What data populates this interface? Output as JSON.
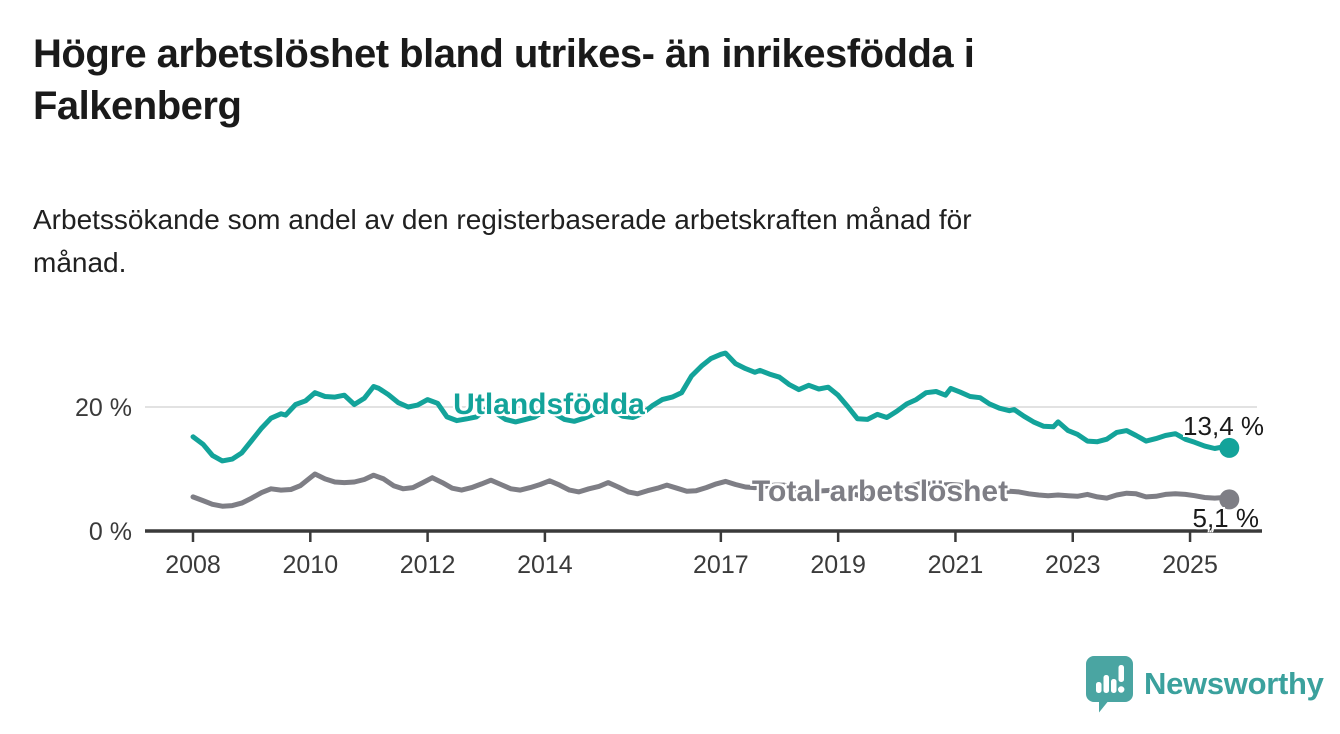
{
  "header": {
    "title_line1": "Högre arbetslöshet bland utrikes- än inrikesfödda i",
    "title_line2": "Falkenberg",
    "subtitle_line1": "Arbetssökande som andel av den registerbaserade arbetskraften månad för",
    "subtitle_line2": "månad."
  },
  "chart_data": {
    "type": "line",
    "unit": "%",
    "x_axis": {
      "ticks": [
        2008,
        2010,
        2012,
        2014,
        2017,
        2019,
        2021,
        2023,
        2025
      ],
      "range_years": [
        2007.2,
        2026.2
      ]
    },
    "y_axis": {
      "ticks": [
        {
          "value": 0,
          "label": "0 %"
        },
        {
          "value": 20,
          "label": "20 %"
        }
      ],
      "grid_values": [
        20
      ],
      "range": [
        0,
        31
      ]
    },
    "series": [
      {
        "name": "Utlandsfödda",
        "color": "#13a39a",
        "end_label": "13,4 %",
        "end_value": 13.4,
        "points": [
          [
            2008.0,
            15.2
          ],
          [
            2008.17,
            14.0
          ],
          [
            2008.33,
            12.2
          ],
          [
            2008.5,
            11.3
          ],
          [
            2008.67,
            11.6
          ],
          [
            2008.83,
            12.6
          ],
          [
            2009.0,
            14.6
          ],
          [
            2009.17,
            16.6
          ],
          [
            2009.33,
            18.2
          ],
          [
            2009.5,
            18.9
          ],
          [
            2009.58,
            18.7
          ],
          [
            2009.75,
            20.4
          ],
          [
            2009.92,
            21.0
          ],
          [
            2010.08,
            22.3
          ],
          [
            2010.25,
            21.7
          ],
          [
            2010.42,
            21.6
          ],
          [
            2010.58,
            21.9
          ],
          [
            2010.75,
            20.4
          ],
          [
            2010.92,
            21.4
          ],
          [
            2011.08,
            23.3
          ],
          [
            2011.17,
            23.0
          ],
          [
            2011.33,
            22.0
          ],
          [
            2011.5,
            20.7
          ],
          [
            2011.67,
            20.0
          ],
          [
            2011.83,
            20.3
          ],
          [
            2012.0,
            21.2
          ],
          [
            2012.17,
            20.6
          ],
          [
            2012.33,
            18.4
          ],
          [
            2012.5,
            17.8
          ],
          [
            2012.67,
            18.1
          ],
          [
            2012.83,
            18.4
          ],
          [
            2013.0,
            19.7
          ],
          [
            2013.17,
            19.0
          ],
          [
            2013.33,
            18.0
          ],
          [
            2013.5,
            17.6
          ],
          [
            2013.67,
            18.0
          ],
          [
            2013.83,
            18.4
          ],
          [
            2014.0,
            19.4
          ],
          [
            2014.17,
            18.9
          ],
          [
            2014.33,
            18.0
          ],
          [
            2014.5,
            17.7
          ],
          [
            2014.67,
            18.2
          ],
          [
            2014.83,
            18.8
          ],
          [
            2015.0,
            19.9
          ],
          [
            2015.17,
            19.3
          ],
          [
            2015.33,
            18.5
          ],
          [
            2015.5,
            18.3
          ],
          [
            2015.67,
            19.0
          ],
          [
            2015.83,
            20.2
          ],
          [
            2016.0,
            21.2
          ],
          [
            2016.17,
            21.6
          ],
          [
            2016.33,
            22.3
          ],
          [
            2016.5,
            25.0
          ],
          [
            2016.67,
            26.6
          ],
          [
            2016.83,
            27.8
          ],
          [
            2017.0,
            28.5
          ],
          [
            2017.08,
            28.7
          ],
          [
            2017.25,
            27.0
          ],
          [
            2017.42,
            26.2
          ],
          [
            2017.58,
            25.6
          ],
          [
            2017.67,
            25.9
          ],
          [
            2017.83,
            25.3
          ],
          [
            2018.0,
            24.8
          ],
          [
            2018.17,
            23.6
          ],
          [
            2018.33,
            22.8
          ],
          [
            2018.5,
            23.5
          ],
          [
            2018.67,
            22.9
          ],
          [
            2018.83,
            23.2
          ],
          [
            2019.0,
            21.9
          ],
          [
            2019.17,
            20.0
          ],
          [
            2019.33,
            18.1
          ],
          [
            2019.5,
            18.0
          ],
          [
            2019.67,
            18.8
          ],
          [
            2019.83,
            18.3
          ],
          [
            2020.0,
            19.3
          ],
          [
            2020.17,
            20.5
          ],
          [
            2020.33,
            21.2
          ],
          [
            2020.5,
            22.3
          ],
          [
            2020.67,
            22.5
          ],
          [
            2020.83,
            21.9
          ],
          [
            2020.92,
            23.0
          ],
          [
            2021.08,
            22.4
          ],
          [
            2021.25,
            21.7
          ],
          [
            2021.42,
            21.5
          ],
          [
            2021.58,
            20.5
          ],
          [
            2021.75,
            19.8
          ],
          [
            2021.92,
            19.4
          ],
          [
            2022.0,
            19.6
          ],
          [
            2022.17,
            18.5
          ],
          [
            2022.33,
            17.6
          ],
          [
            2022.5,
            16.9
          ],
          [
            2022.67,
            16.8
          ],
          [
            2022.75,
            17.6
          ],
          [
            2022.92,
            16.2
          ],
          [
            2023.08,
            15.6
          ],
          [
            2023.25,
            14.5
          ],
          [
            2023.42,
            14.4
          ],
          [
            2023.58,
            14.8
          ],
          [
            2023.75,
            15.9
          ],
          [
            2023.92,
            16.2
          ],
          [
            2024.08,
            15.4
          ],
          [
            2024.25,
            14.5
          ],
          [
            2024.42,
            14.9
          ],
          [
            2024.58,
            15.4
          ],
          [
            2024.75,
            15.7
          ],
          [
            2024.92,
            14.8
          ],
          [
            2025.08,
            14.3
          ],
          [
            2025.25,
            13.7
          ],
          [
            2025.42,
            13.3
          ],
          [
            2025.58,
            13.6
          ],
          [
            2025.67,
            13.4
          ]
        ]
      },
      {
        "name": "Total arbetslöshet",
        "color": "#7e7e85",
        "end_label": "5,1 %",
        "end_value": 5.1,
        "points": [
          [
            2008.0,
            5.5
          ],
          [
            2008.17,
            4.9
          ],
          [
            2008.33,
            4.3
          ],
          [
            2008.5,
            4.0
          ],
          [
            2008.67,
            4.1
          ],
          [
            2008.83,
            4.5
          ],
          [
            2009.0,
            5.3
          ],
          [
            2009.17,
            6.2
          ],
          [
            2009.33,
            6.8
          ],
          [
            2009.5,
            6.6
          ],
          [
            2009.67,
            6.7
          ],
          [
            2009.83,
            7.3
          ],
          [
            2010.0,
            8.6
          ],
          [
            2010.08,
            9.2
          ],
          [
            2010.25,
            8.4
          ],
          [
            2010.42,
            7.9
          ],
          [
            2010.58,
            7.8
          ],
          [
            2010.75,
            7.9
          ],
          [
            2010.92,
            8.3
          ],
          [
            2011.08,
            9.0
          ],
          [
            2011.25,
            8.4
          ],
          [
            2011.42,
            7.3
          ],
          [
            2011.58,
            6.8
          ],
          [
            2011.75,
            7.0
          ],
          [
            2011.92,
            7.8
          ],
          [
            2012.08,
            8.6
          ],
          [
            2012.25,
            7.8
          ],
          [
            2012.42,
            6.9
          ],
          [
            2012.58,
            6.6
          ],
          [
            2012.75,
            7.0
          ],
          [
            2012.92,
            7.6
          ],
          [
            2013.08,
            8.2
          ],
          [
            2013.25,
            7.5
          ],
          [
            2013.42,
            6.8
          ],
          [
            2013.58,
            6.6
          ],
          [
            2013.75,
            7.0
          ],
          [
            2013.92,
            7.5
          ],
          [
            2014.08,
            8.1
          ],
          [
            2014.25,
            7.4
          ],
          [
            2014.42,
            6.6
          ],
          [
            2014.58,
            6.3
          ],
          [
            2014.75,
            6.8
          ],
          [
            2014.92,
            7.2
          ],
          [
            2015.08,
            7.8
          ],
          [
            2015.25,
            7.1
          ],
          [
            2015.42,
            6.3
          ],
          [
            2015.58,
            6.0
          ],
          [
            2015.75,
            6.5
          ],
          [
            2015.92,
            6.9
          ],
          [
            2016.08,
            7.4
          ],
          [
            2016.25,
            6.9
          ],
          [
            2016.42,
            6.4
          ],
          [
            2016.58,
            6.5
          ],
          [
            2016.75,
            7.0
          ],
          [
            2016.92,
            7.6
          ],
          [
            2017.08,
            8.0
          ],
          [
            2017.25,
            7.5
          ],
          [
            2017.42,
            7.1
          ],
          [
            2017.58,
            7.0
          ],
          [
            2017.75,
            7.2
          ],
          [
            2017.92,
            7.4
          ],
          [
            2018.08,
            7.4
          ],
          [
            2018.25,
            6.9
          ],
          [
            2018.42,
            6.4
          ],
          [
            2018.58,
            6.3
          ],
          [
            2018.75,
            6.5
          ],
          [
            2018.92,
            6.6
          ],
          [
            2019.08,
            6.5
          ],
          [
            2019.25,
            6.0
          ],
          [
            2019.42,
            5.6
          ],
          [
            2019.58,
            5.5
          ],
          [
            2019.75,
            5.8
          ],
          [
            2019.92,
            6.1
          ],
          [
            2020.08,
            6.6
          ],
          [
            2020.25,
            7.3
          ],
          [
            2020.42,
            7.7
          ],
          [
            2020.58,
            7.6
          ],
          [
            2020.75,
            7.4
          ],
          [
            2020.92,
            7.5
          ],
          [
            2021.08,
            7.4
          ],
          [
            2021.25,
            7.0
          ],
          [
            2021.42,
            6.6
          ],
          [
            2021.58,
            6.4
          ],
          [
            2021.75,
            6.3
          ],
          [
            2021.92,
            6.4
          ],
          [
            2022.08,
            6.3
          ],
          [
            2022.25,
            6.0
          ],
          [
            2022.42,
            5.8
          ],
          [
            2022.58,
            5.7
          ],
          [
            2022.75,
            5.8
          ],
          [
            2022.92,
            5.7
          ],
          [
            2023.08,
            5.6
          ],
          [
            2023.25,
            5.9
          ],
          [
            2023.42,
            5.5
          ],
          [
            2023.58,
            5.3
          ],
          [
            2023.75,
            5.8
          ],
          [
            2023.92,
            6.1
          ],
          [
            2024.08,
            6.0
          ],
          [
            2024.25,
            5.5
          ],
          [
            2024.42,
            5.6
          ],
          [
            2024.58,
            5.9
          ],
          [
            2024.75,
            6.0
          ],
          [
            2024.92,
            5.9
          ],
          [
            2025.08,
            5.7
          ],
          [
            2025.25,
            5.4
          ],
          [
            2025.42,
            5.3
          ],
          [
            2025.58,
            5.4
          ],
          [
            2025.67,
            5.1
          ]
        ]
      }
    ]
  },
  "footer": {
    "brand": "Newsworthy",
    "brand_color": "#3ba19d",
    "logo_icon_color": "#4aa5a2",
    "logo_icon": "bar-chart-speech-bubble"
  }
}
